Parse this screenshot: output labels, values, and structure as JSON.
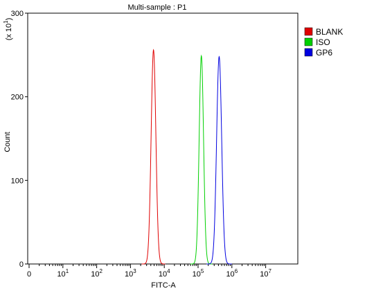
{
  "chart_data": {
    "type": "line",
    "title": "Multi-sample : P1",
    "xlabel": "FITC-A",
    "ylabel": "Count",
    "y_scale_note": "(x 10^1)",
    "x_scale": "log",
    "xlim": [
      0,
      10000000
    ],
    "ylim": [
      0,
      300
    ],
    "grid": false,
    "legend_position": "top-right",
    "y_ticks": [
      {
        "value": 0,
        "label": "0"
      },
      {
        "value": 100,
        "label": "100"
      },
      {
        "value": 200,
        "label": "200"
      },
      {
        "value": 300,
        "label": "300"
      }
    ],
    "x_ticks": [
      {
        "exp": 0,
        "label": "0"
      },
      {
        "exp": 1,
        "label": "10",
        "sup": "1"
      },
      {
        "exp": 2,
        "label": "10",
        "sup": "2"
      },
      {
        "exp": 3,
        "label": "10",
        "sup": "3"
      },
      {
        "exp": 4,
        "label": "10",
        "sup": "4"
      },
      {
        "exp": 5,
        "label": "10",
        "sup": "5"
      },
      {
        "exp": 6,
        "label": "10",
        "sup": "6"
      },
      {
        "exp": 7,
        "label": "10",
        "sup": "7"
      }
    ],
    "series": [
      {
        "name": "BLANK",
        "color": "#e00000",
        "peak_x": 4800,
        "peak_count": 256,
        "width_decades": 0.07
      },
      {
        "name": "ISO",
        "color": "#00d000",
        "peak_x": 125000,
        "peak_count": 249,
        "width_decades": 0.065
      },
      {
        "name": "GP6",
        "color": "#0000e0",
        "peak_x": 420000,
        "peak_count": 248,
        "width_decades": 0.075
      }
    ]
  }
}
